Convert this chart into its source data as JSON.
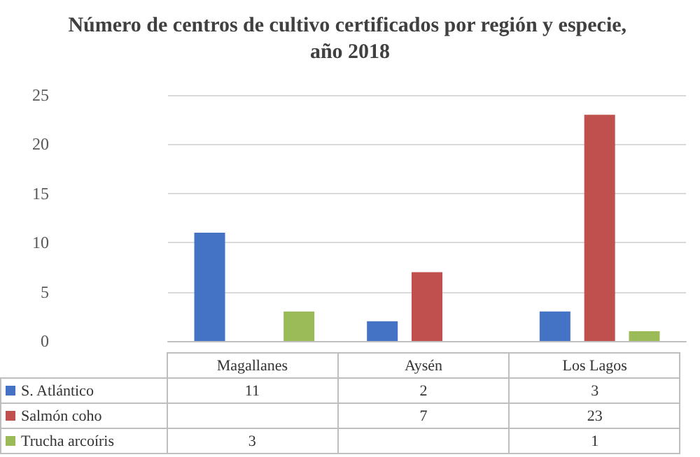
{
  "chart_data": {
    "type": "bar",
    "title": "Número de centros de cultivo certificados por región y especie, año 2018",
    "categories": [
      "Magallanes",
      "Aysén",
      "Los Lagos"
    ],
    "series": [
      {
        "name": "S. Atlántico",
        "color": "#4472c4",
        "values": [
          11,
          2,
          3
        ]
      },
      {
        "name": "Salmón coho",
        "color": "#c0504d",
        "values": [
          null,
          7,
          23
        ]
      },
      {
        "name": "Trucha arcoíris",
        "color": "#9bbb59",
        "values": [
          3,
          null,
          1
        ]
      }
    ],
    "ylim": [
      0,
      25
    ],
    "yticks": [
      0,
      5,
      10,
      15,
      20,
      25
    ],
    "grid": "y",
    "legend": "bottom",
    "data_labels": true
  }
}
